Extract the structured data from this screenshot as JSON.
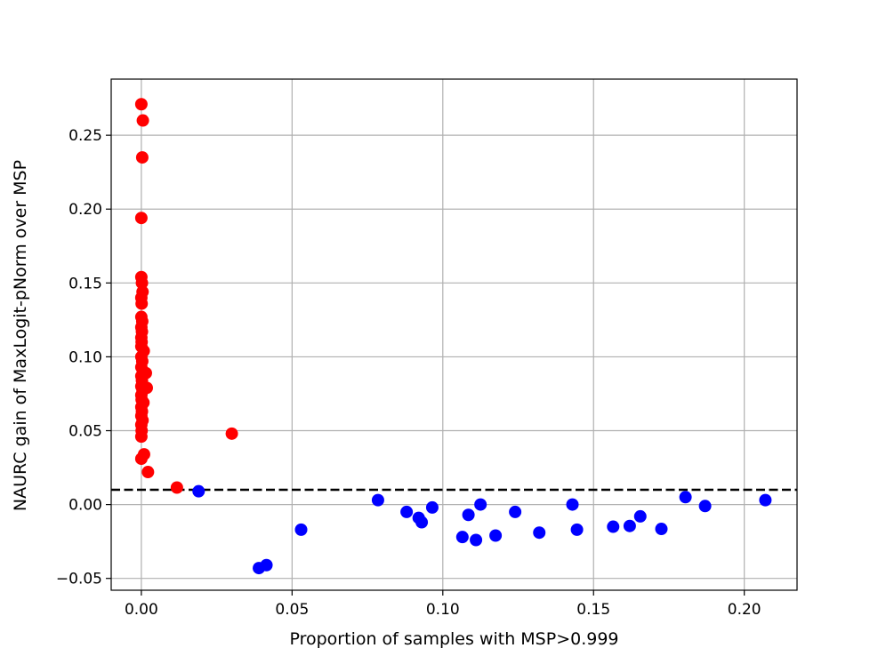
{
  "chart_data": {
    "type": "scatter",
    "title": "",
    "xlabel": "Proportion of samples with MSP>0.999",
    "ylabel": "NAURC gain of MaxLogit-pNorm over MSP",
    "xlim": [
      -0.01,
      0.2175
    ],
    "ylim": [
      -0.058,
      0.288
    ],
    "xticks": [
      0.0,
      0.05,
      0.1,
      0.15,
      0.2
    ],
    "xtick_labels": [
      "0.00",
      "0.05",
      "0.10",
      "0.15",
      "0.20"
    ],
    "yticks": [
      -0.05,
      0.0,
      0.05,
      0.1,
      0.15,
      0.2,
      0.25
    ],
    "ytick_labels": [
      "−0.05",
      "0.00",
      "0.05",
      "0.10",
      "0.15",
      "0.20",
      "0.25"
    ],
    "grid": true,
    "threshold_line": {
      "y": 0.01,
      "style": "dashed",
      "color": "#000000"
    },
    "series": [
      {
        "color": "#ff0000",
        "points": [
          [
            0.0,
            0.271
          ],
          [
            0.0005,
            0.26
          ],
          [
            0.0003,
            0.235
          ],
          [
            0.0,
            0.194
          ],
          [
            0.0,
            0.154
          ],
          [
            0.0002,
            0.15
          ],
          [
            0.0004,
            0.144
          ],
          [
            0.0,
            0.14
          ],
          [
            0.0001,
            0.136
          ],
          [
            0.0,
            0.127
          ],
          [
            0.0003,
            0.124
          ],
          [
            0.0,
            0.12
          ],
          [
            0.0002,
            0.117
          ],
          [
            0.0,
            0.113
          ],
          [
            0.0001,
            0.11
          ],
          [
            0.0,
            0.107
          ],
          [
            0.0008,
            0.104
          ],
          [
            0.0,
            0.1
          ],
          [
            0.0003,
            0.097
          ],
          [
            0.0,
            0.093
          ],
          [
            0.0005,
            0.09
          ],
          [
            0.0015,
            0.089
          ],
          [
            0.0,
            0.087
          ],
          [
            0.0002,
            0.084
          ],
          [
            0.0,
            0.08
          ],
          [
            0.0018,
            0.079
          ],
          [
            0.0004,
            0.077
          ],
          [
            0.0,
            0.074
          ],
          [
            0.0001,
            0.071
          ],
          [
            0.0007,
            0.069
          ],
          [
            0.0,
            0.066
          ],
          [
            0.0002,
            0.063
          ],
          [
            0.0,
            0.06
          ],
          [
            0.0004,
            0.057
          ],
          [
            0.0,
            0.054
          ],
          [
            0.0001,
            0.05
          ],
          [
            0.0,
            0.046
          ],
          [
            0.0009,
            0.034
          ],
          [
            0.0,
            0.031
          ],
          [
            0.0022,
            0.022
          ],
          [
            0.0118,
            0.0115
          ],
          [
            0.03,
            0.048
          ]
        ]
      },
      {
        "color": "#0000ff",
        "points": [
          [
            0.019,
            0.009
          ],
          [
            0.039,
            -0.043
          ],
          [
            0.0415,
            -0.041
          ],
          [
            0.053,
            -0.017
          ],
          [
            0.0785,
            0.003
          ],
          [
            0.088,
            -0.005
          ],
          [
            0.092,
            -0.009
          ],
          [
            0.093,
            -0.012
          ],
          [
            0.0965,
            -0.002
          ],
          [
            0.1065,
            -0.022
          ],
          [
            0.1085,
            -0.007
          ],
          [
            0.111,
            -0.024
          ],
          [
            0.1125,
            0.0
          ],
          [
            0.1175,
            -0.021
          ],
          [
            0.124,
            -0.005
          ],
          [
            0.132,
            -0.019
          ],
          [
            0.143,
            0.0
          ],
          [
            0.1445,
            -0.017
          ],
          [
            0.1565,
            -0.015
          ],
          [
            0.162,
            -0.0145
          ],
          [
            0.1655,
            -0.008
          ],
          [
            0.1725,
            -0.0165
          ],
          [
            0.1805,
            0.005
          ],
          [
            0.187,
            -0.001
          ],
          [
            0.207,
            0.003
          ]
        ]
      }
    ]
  }
}
